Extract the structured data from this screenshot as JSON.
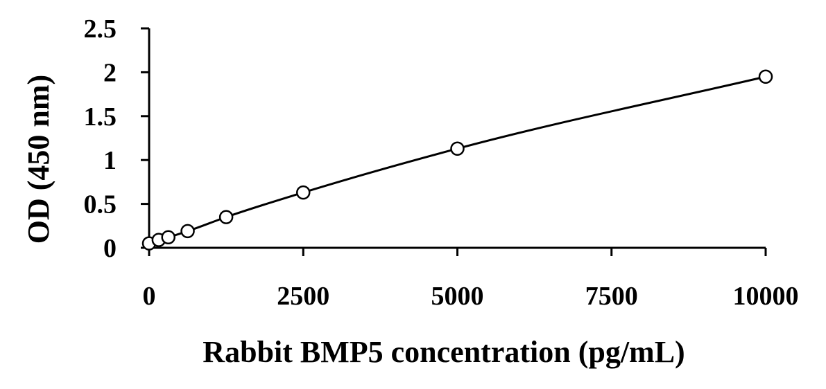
{
  "chart_data": {
    "type": "scatter",
    "title": "",
    "xlabel": "Rabbit BMP5 concentration (pg/mL)",
    "ylabel": "OD (450 nm)",
    "xlim": [
      0,
      10000
    ],
    "ylim": [
      0,
      2.5
    ],
    "x_ticks": [
      0,
      2500,
      5000,
      7500,
      10000
    ],
    "x_tick_labels": [
      "0",
      "2500",
      "5000",
      "7500",
      "10000"
    ],
    "y_ticks": [
      0,
      0.5,
      1,
      1.5,
      2,
      2.5
    ],
    "y_tick_labels": [
      "0",
      "0.5",
      "1",
      "1.5",
      "2",
      "2.5"
    ],
    "grid": false,
    "legend": "none",
    "series": [
      {
        "x": [
          0,
          156,
          312,
          625,
          1250,
          2500,
          5000,
          10000
        ],
        "y": [
          0.05,
          0.09,
          0.12,
          0.19,
          0.35,
          0.63,
          1.13,
          1.95
        ],
        "marker": "open-circle",
        "fit": "smooth-curve"
      }
    ],
    "colors": {
      "line": "#000000",
      "marker_stroke": "#000000",
      "marker_fill": "#ffffff"
    }
  }
}
